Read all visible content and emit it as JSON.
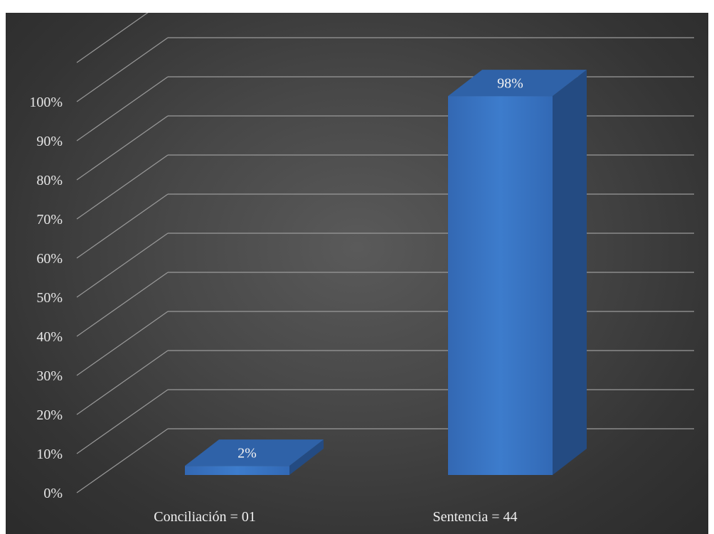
{
  "chart_data": {
    "type": "bar",
    "style": "3d-column",
    "categories": [
      "Conciliación  = 01",
      "Sentencia = 44"
    ],
    "values": [
      2,
      98
    ],
    "value_unit": "%",
    "data_labels": [
      "2%",
      "98%"
    ],
    "yticks": [
      "0%",
      "10%",
      "20%",
      "30%",
      "40%",
      "50%",
      "60%",
      "70%",
      "80%",
      "90%",
      "100%"
    ],
    "ylim": [
      0,
      100
    ],
    "grid": true,
    "legend": false,
    "title": "",
    "xlabel": "",
    "ylabel": "",
    "colors": {
      "bar_front": "#3a75c4",
      "bar_side": "#244b82",
      "bar_top": "#2f62a8",
      "gridline": "#9a9a9a",
      "background": "#474747",
      "text": "#e6e6e6"
    }
  }
}
